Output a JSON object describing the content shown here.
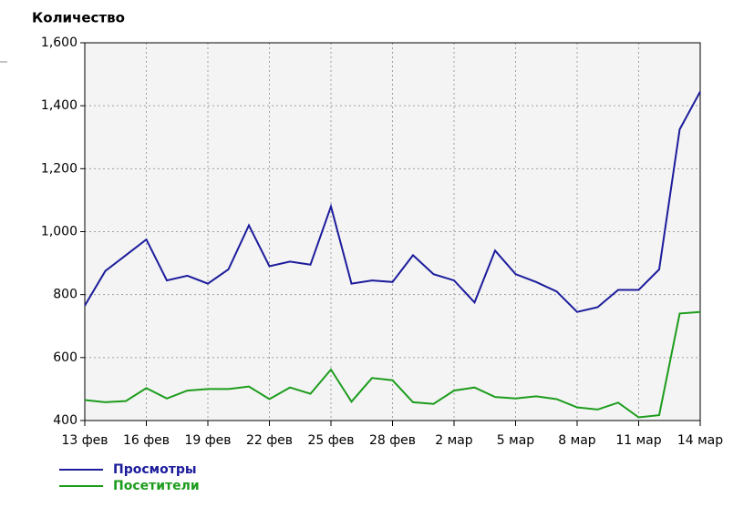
{
  "chart_data": {
    "type": "line",
    "title": "Количество",
    "categories": [
      "13 фев",
      null,
      null,
      "16 фев",
      null,
      null,
      "19 фев",
      null,
      null,
      "22 фев",
      null,
      null,
      "25 фев",
      null,
      null,
      "28 фев",
      null,
      null,
      "2 мар",
      null,
      null,
      "5 мар",
      null,
      null,
      "8 мар",
      null,
      null,
      "11 мар",
      null,
      null,
      "14 мар"
    ],
    "series": [
      {
        "name": "Просмотры",
        "color": "#1c1c9c",
        "values": [
          765,
          875,
          925,
          975,
          845,
          860,
          835,
          880,
          1020,
          890,
          905,
          895,
          1080,
          835,
          845,
          840,
          925,
          865,
          845,
          775,
          940,
          865,
          840,
          810,
          745,
          760,
          815,
          815,
          880,
          1325,
          1445
        ]
      },
      {
        "name": "Посетители",
        "color": "#1c9c1c",
        "values": [
          465,
          458,
          462,
          503,
          470,
          495,
          500,
          500,
          508,
          468,
          505,
          485,
          562,
          460,
          535,
          528,
          458,
          453,
          495,
          505,
          475,
          470,
          477,
          468,
          442,
          435,
          457,
          410,
          417,
          740,
          745
        ]
      }
    ],
    "ylim": [
      400,
      1600
    ],
    "yticks": [
      400,
      600,
      800,
      {
        "value": 1000,
        "label": "1,000"
      },
      {
        "value": 1200,
        "label": "1,200"
      },
      {
        "value": 1400,
        "label": "1,400"
      },
      {
        "value": 1600,
        "label": "1,600"
      }
    ],
    "grid": true
  }
}
